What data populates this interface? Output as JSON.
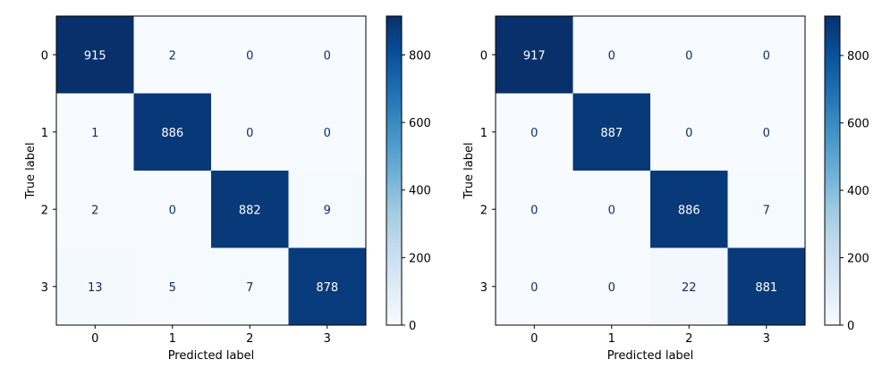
{
  "chart_data": [
    {
      "type": "heatmap",
      "title": "",
      "xlabel": "Predicted label",
      "ylabel": "True label",
      "x_categories": [
        "0",
        "1",
        "2",
        "3"
      ],
      "y_categories": [
        "0",
        "1",
        "2",
        "3"
      ],
      "values": [
        [
          915,
          2,
          0,
          0
        ],
        [
          1,
          886,
          0,
          0
        ],
        [
          2,
          0,
          882,
          9
        ],
        [
          13,
          5,
          7,
          878
        ]
      ],
      "colormap": "Blues",
      "colorbar": {
        "range": [
          0,
          915
        ],
        "ticks": [
          0,
          200,
          400,
          600,
          800
        ]
      }
    },
    {
      "type": "heatmap",
      "title": "",
      "xlabel": "Predicted label",
      "ylabel": "True label",
      "x_categories": [
        "0",
        "1",
        "2",
        "3"
      ],
      "y_categories": [
        "0",
        "1",
        "2",
        "3"
      ],
      "values": [
        [
          917,
          0,
          0,
          0
        ],
        [
          0,
          887,
          0,
          0
        ],
        [
          0,
          0,
          886,
          7
        ],
        [
          0,
          0,
          22,
          881
        ]
      ],
      "colormap": "Blues",
      "colorbar": {
        "range": [
          0,
          917
        ],
        "ticks": [
          0,
          200,
          400,
          600,
          800
        ]
      }
    }
  ]
}
